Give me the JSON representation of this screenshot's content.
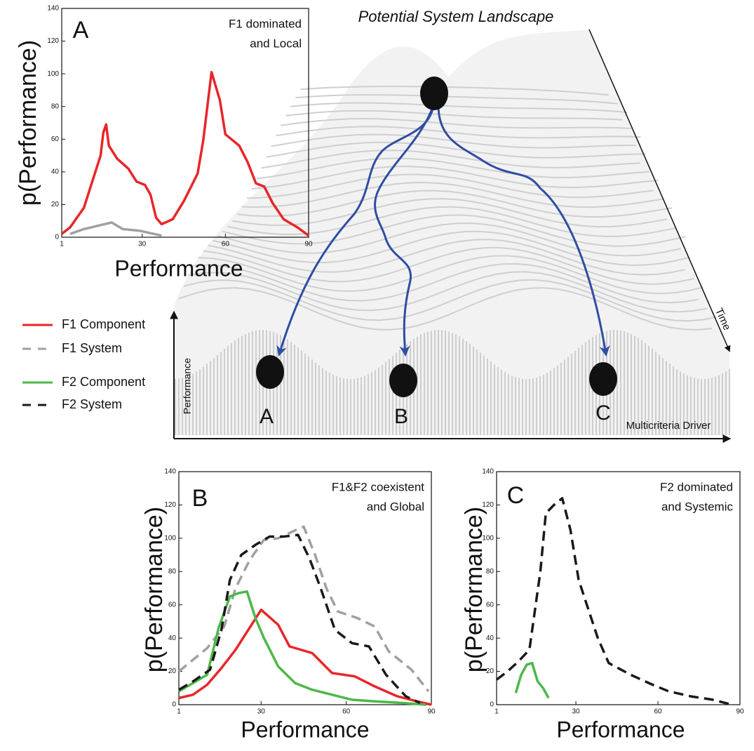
{
  "chart_data": [
    {
      "type": "line",
      "panel_label": "A",
      "annotation": [
        "F1 dominated",
        "and Local"
      ],
      "x_label": "Performance",
      "y_label": "p(Performance)",
      "xlim": [
        1,
        90
      ],
      "xticks": [
        1,
        30,
        60,
        90
      ],
      "ylim": [
        0,
        140
      ],
      "yticks": [
        0,
        20,
        40,
        60,
        80,
        100,
        120,
        140
      ],
      "series": [
        {
          "color": "#e8262a",
          "dash": false,
          "x": [
            1,
            4,
            9,
            12,
            15,
            16,
            17,
            18,
            21,
            25,
            28,
            31,
            33,
            35,
            37,
            41,
            45,
            50,
            52,
            55,
            58,
            60,
            65,
            68,
            71,
            74,
            77,
            81,
            86,
            90
          ],
          "values": [
            2,
            6,
            18,
            34,
            50,
            64,
            69,
            56,
            48,
            42,
            34,
            32,
            26,
            12,
            8,
            11,
            22,
            39,
            59,
            101,
            84,
            63,
            56,
            46,
            33,
            31,
            21,
            11,
            6,
            1
          ]
        },
        {
          "color": "#a0a0a0",
          "dash": false,
          "x": [
            4,
            9,
            14,
            19,
            23,
            29,
            37
          ],
          "values": [
            2,
            5,
            7,
            9,
            5,
            4,
            1
          ]
        }
      ]
    },
    {
      "type": "line",
      "panel_label": "B",
      "annotation": [
        "F1&F2 coexistent",
        "and Global"
      ],
      "x_label": "Performance",
      "y_label": "p(Performance)",
      "xlim": [
        1,
        90
      ],
      "xticks": [
        1,
        30,
        60,
        90
      ],
      "ylim": [
        0,
        140
      ],
      "yticks": [
        0,
        20,
        40,
        60,
        80,
        100,
        120,
        140
      ],
      "series": [
        {
          "name": "F1 Component",
          "color": "#e8262a",
          "dash": false,
          "x": [
            1,
            6,
            11,
            16,
            21,
            30,
            36,
            40,
            48,
            55,
            63,
            70,
            78,
            85,
            90
          ],
          "values": [
            4,
            6,
            12,
            22,
            33,
            57,
            48,
            35,
            31,
            19,
            17,
            11,
            5,
            2,
            0
          ]
        },
        {
          "name": "F1 System",
          "color": "#a0a0a0",
          "dash": true,
          "x": [
            1,
            6,
            11,
            17,
            21,
            26,
            31,
            36,
            41,
            45,
            49,
            53,
            57,
            64,
            70,
            75,
            83,
            89
          ],
          "values": [
            20,
            27,
            34,
            47,
            70,
            87,
            99,
            100,
            104,
            107,
            90,
            70,
            56,
            52,
            47,
            32,
            21,
            8
          ]
        },
        {
          "name": "F2 Component",
          "color": "#4db848",
          "dash": false,
          "x": [
            1,
            6,
            11,
            15,
            19,
            22,
            25,
            28,
            31,
            36,
            42,
            48,
            55,
            62,
            70,
            80,
            88
          ],
          "values": [
            8,
            13,
            18,
            46,
            65,
            67,
            68,
            52,
            40,
            23,
            13,
            9,
            6,
            3,
            2,
            1,
            0
          ]
        },
        {
          "name": "F2 System",
          "color": "#1a1a1a",
          "dash": true,
          "x": [
            1,
            6,
            12,
            16,
            19,
            23,
            28,
            33,
            38,
            43,
            47,
            51,
            56,
            62,
            68,
            74,
            81,
            86
          ],
          "values": [
            9,
            14,
            21,
            45,
            75,
            90,
            96,
            101,
            101,
            102,
            88,
            70,
            45,
            37,
            35,
            18,
            5,
            1
          ]
        }
      ]
    },
    {
      "type": "line",
      "panel_label": "C",
      "annotation": [
        "F2 dominated",
        "and Systemic"
      ],
      "x_label": "Performance",
      "y_label": "p(Performance)",
      "xlim": [
        1,
        90
      ],
      "xticks": [
        1,
        30,
        60,
        90
      ],
      "ylim": [
        0,
        140
      ],
      "yticks": [
        0,
        20,
        40,
        60,
        80,
        100,
        120,
        140
      ],
      "series": [
        {
          "color": "#4db848",
          "dash": false,
          "x": [
            8,
            10,
            12,
            14,
            16,
            18,
            20
          ],
          "values": [
            7,
            18,
            24,
            25,
            14,
            10,
            4
          ]
        },
        {
          "color": "#1a1a1a",
          "dash": true,
          "x": [
            1,
            5,
            9,
            13,
            17,
            19,
            22,
            25,
            28,
            31,
            35,
            38,
            42,
            50,
            58,
            64,
            72,
            80,
            87
          ],
          "values": [
            15,
            20,
            26,
            33,
            80,
            115,
            120,
            124,
            105,
            75,
            55,
            40,
            25,
            18,
            12,
            8,
            5,
            3,
            0
          ]
        }
      ]
    }
  ],
  "landscape": {
    "title": "Potential System Landscape",
    "time_label": "Time",
    "x_label": "Multicriteria Driver",
    "y_label": "Performance",
    "states": [
      "A",
      "B",
      "C"
    ]
  }
}
